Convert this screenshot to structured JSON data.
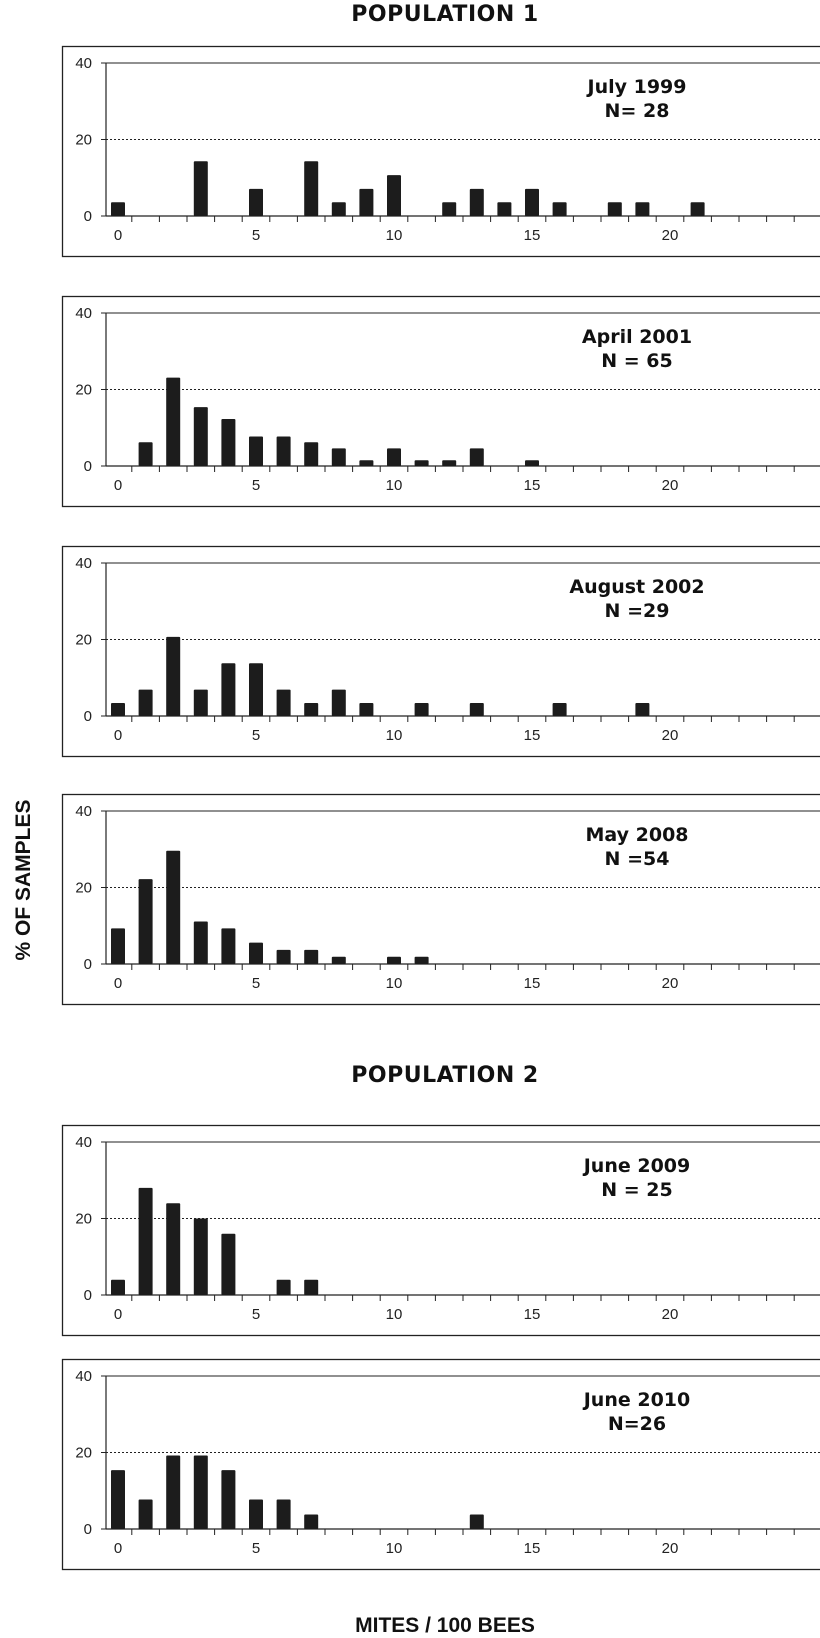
{
  "populations": [
    {
      "title": "POPULATION 1"
    },
    {
      "title": "POPULATION 2"
    }
  ],
  "ylabel": "% OF SAMPLES",
  "xlabel": "MITES / 100 BEES",
  "chart_data": [
    {
      "type": "bar",
      "population": "POPULATION 1",
      "title": "July 1999",
      "subtitle": "N= 28",
      "x": [
        0,
        3,
        5,
        7,
        8,
        9,
        10,
        12,
        13,
        14,
        15,
        16,
        18,
        19,
        21
      ],
      "values": [
        3.6,
        14.3,
        7.1,
        14.3,
        3.6,
        7.1,
        10.7,
        3.6,
        7.1,
        3.6,
        7.1,
        3.6,
        3.6,
        3.6,
        3.6
      ],
      "ylim": [
        0,
        40
      ],
      "yticks": [
        0,
        20,
        40
      ],
      "xticks": [
        0,
        5,
        10,
        15,
        20
      ],
      "xlim": [
        -0.5,
        24
      ],
      "grid": "y"
    },
    {
      "type": "bar",
      "population": "POPULATION 1",
      "title": "April 2001",
      "subtitle": "N = 65",
      "x": [
        1,
        2,
        3,
        4,
        5,
        6,
        7,
        8,
        9,
        10,
        11,
        12,
        13,
        15
      ],
      "values": [
        6.2,
        23.1,
        15.4,
        12.3,
        7.7,
        7.7,
        6.2,
        4.6,
        1.5,
        4.6,
        1.5,
        1.5,
        4.6,
        1.5
      ],
      "ylim": [
        0,
        40
      ],
      "yticks": [
        0,
        20,
        40
      ],
      "xticks": [
        0,
        5,
        10,
        15,
        20
      ],
      "xlim": [
        -0.5,
        24
      ],
      "grid": "y"
    },
    {
      "type": "bar",
      "population": "POPULATION 1",
      "title": "August 2002",
      "subtitle": "N =29",
      "x": [
        0,
        1,
        2,
        3,
        4,
        5,
        6,
        7,
        8,
        9,
        11,
        13,
        16,
        19
      ],
      "values": [
        3.4,
        6.9,
        20.7,
        6.9,
        13.8,
        13.8,
        6.9,
        3.4,
        6.9,
        3.4,
        3.4,
        3.4,
        3.4,
        3.4
      ],
      "ylim": [
        0,
        40
      ],
      "yticks": [
        0,
        20,
        40
      ],
      "xticks": [
        0,
        5,
        10,
        15,
        20
      ],
      "xlim": [
        -0.5,
        24
      ],
      "grid": "y"
    },
    {
      "type": "bar",
      "population": "POPULATION 1",
      "title": "May 2008",
      "subtitle": "N =54",
      "x": [
        0,
        1,
        2,
        3,
        4,
        5,
        6,
        7,
        8,
        10,
        11
      ],
      "values": [
        9.3,
        22.2,
        29.6,
        11.1,
        9.3,
        5.6,
        3.7,
        3.7,
        1.9,
        1.9,
        1.9
      ],
      "ylim": [
        0,
        40
      ],
      "yticks": [
        0,
        20,
        40
      ],
      "xticks": [
        0,
        5,
        10,
        15,
        20
      ],
      "xlim": [
        -0.5,
        24
      ],
      "grid": "y"
    },
    {
      "type": "bar",
      "population": "POPULATION 2",
      "title": "June 2009",
      "subtitle": "N = 25",
      "x": [
        0,
        1,
        2,
        3,
        4,
        6,
        7
      ],
      "values": [
        4,
        28,
        24,
        20,
        16,
        4,
        4
      ],
      "ylim": [
        0,
        40
      ],
      "yticks": [
        0,
        20,
        40
      ],
      "xticks": [
        0,
        5,
        10,
        15,
        20
      ],
      "xlim": [
        -0.5,
        24
      ],
      "grid": "y"
    },
    {
      "type": "bar",
      "population": "POPULATION 2",
      "title": "June 2010",
      "subtitle": "N=26",
      "x": [
        0,
        1,
        2,
        3,
        4,
        5,
        6,
        7,
        13
      ],
      "values": [
        15.4,
        7.7,
        19.2,
        19.2,
        15.4,
        7.7,
        7.7,
        3.8,
        3.8
      ],
      "ylim": [
        0,
        40
      ],
      "yticks": [
        0,
        20,
        40
      ],
      "xticks": [
        0,
        5,
        10,
        15,
        20
      ],
      "xlim": [
        -0.5,
        24
      ],
      "grid": "y"
    }
  ]
}
